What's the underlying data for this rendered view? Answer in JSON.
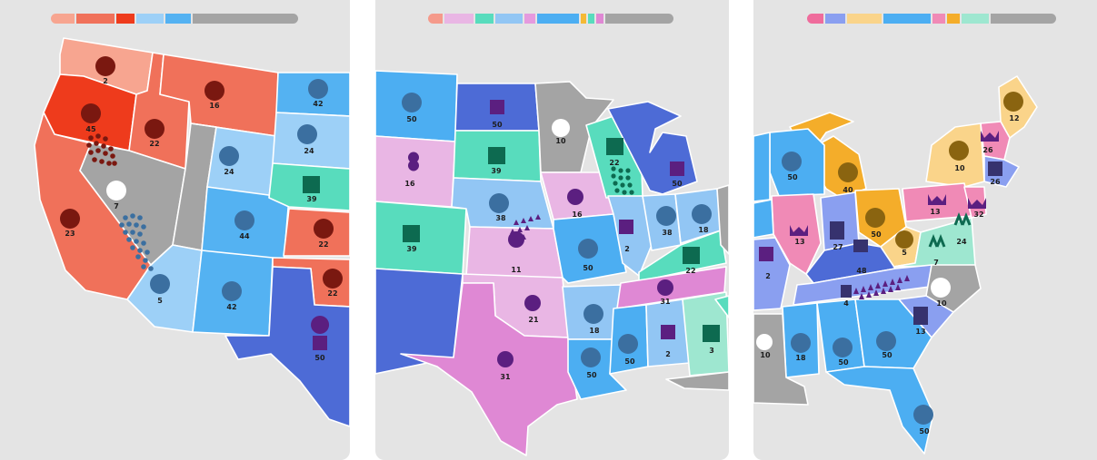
{
  "panels": [
    {
      "id": "p1",
      "progress": [
        {
          "w": 26,
          "color": "#f7a590"
        },
        {
          "w": 42,
          "color": "#f0715a"
        },
        {
          "w": 20,
          "color": "#ee3b1c"
        },
        {
          "w": 30,
          "color": "#9dd0f7"
        },
        {
          "w": 28,
          "color": "#54b2f2"
        },
        {
          "w": 116,
          "color": "#a4a4a4"
        }
      ],
      "labels": {
        "s1": "2",
        "s2": "45",
        "s3": "16",
        "s4": "22",
        "s5": "7",
        "s6": "23",
        "s7": "42",
        "s8": "24",
        "s9": "24",
        "s10": "39",
        "s11": "44",
        "s12": "22",
        "s13": "22",
        "s14": "5",
        "s15": "42",
        "s16": "50"
      }
    },
    {
      "id": "p2",
      "progress": [
        {
          "w": 16,
          "color": "#f59a8b"
        },
        {
          "w": 32,
          "color": "#e9b6e4"
        },
        {
          "w": 20,
          "color": "#58dcbd"
        },
        {
          "w": 30,
          "color": "#92c6f4"
        },
        {
          "w": 12,
          "color": "#e59ade"
        },
        {
          "w": 46,
          "color": "#4caef2"
        },
        {
          "w": 6,
          "color": "#f4b935"
        },
        {
          "w": 7,
          "color": "#58dcbd"
        },
        {
          "w": 8,
          "color": "#df88d4"
        },
        {
          "w": 75,
          "color": "#a4a4a4"
        }
      ],
      "labels": {
        "t1": "50",
        "t2": "50",
        "t3": "10",
        "t4": "16",
        "t5": "39",
        "t6": "22",
        "t7": "39",
        "t8": "38",
        "t9": "16",
        "t10": "50",
        "t11": "11",
        "t12": "2",
        "t13": "38",
        "t14": "18",
        "t15": "50",
        "t16": "22",
        "t17": "21",
        "t18": "31",
        "t19": "18",
        "t20": "31",
        "t21": "50",
        "t22": "50",
        "t23": "2",
        "t24": "3"
      }
    },
    {
      "id": "p3",
      "progress": [
        {
          "w": 18,
          "color": "#ef6c9c"
        },
        {
          "w": 22,
          "color": "#8a9ff0"
        },
        {
          "w": 38,
          "color": "#fad48a"
        },
        {
          "w": 52,
          "color": "#4caef2"
        },
        {
          "w": 14,
          "color": "#f08ab6"
        },
        {
          "w": 14,
          "color": "#f4ad2a"
        },
        {
          "w": 30,
          "color": "#9ee7d0"
        },
        {
          "w": 72,
          "color": "#a4a4a4"
        }
      ],
      "labels": {
        "u1": "12",
        "u2": "26",
        "u3": "26",
        "u4": "10",
        "u5": "50",
        "u6": "40",
        "u7": "13",
        "u8": "32",
        "u9": "13",
        "u10": "27",
        "u11": "50",
        "u12": "5",
        "u13": "24",
        "u14": "7",
        "u15": "2",
        "u16": "48",
        "u17": "4",
        "u18": "10",
        "u19": "13",
        "u20": "10",
        "u21": "18",
        "u22": "50",
        "u23": "50",
        "u24": "50"
      }
    }
  ]
}
